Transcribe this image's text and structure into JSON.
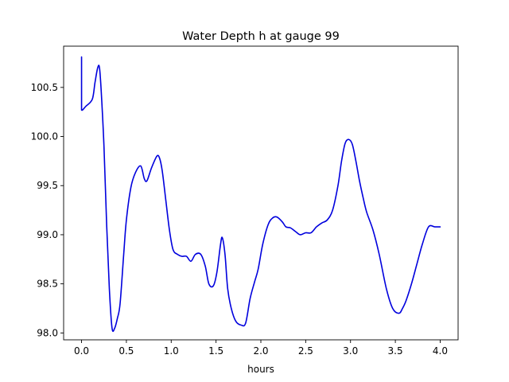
{
  "chart_data": {
    "type": "line",
    "title": "Water Depth h at gauge 99",
    "xlabel": "hours",
    "ylabel": "",
    "xlim": [
      -0.2,
      4.2
    ],
    "ylim": [
      97.93,
      100.92
    ],
    "xticks": [
      {
        "value": 0.0,
        "label": "0.0"
      },
      {
        "value": 0.5,
        "label": "0.5"
      },
      {
        "value": 1.0,
        "label": "1.0"
      },
      {
        "value": 1.5,
        "label": "1.5"
      },
      {
        "value": 2.0,
        "label": "2.0"
      },
      {
        "value": 2.5,
        "label": "2.5"
      },
      {
        "value": 3.0,
        "label": "3.0"
      },
      {
        "value": 3.5,
        "label": "3.5"
      },
      {
        "value": 4.0,
        "label": "4.0"
      }
    ],
    "yticks": [
      {
        "value": 98.0,
        "label": "98.0"
      },
      {
        "value": 98.5,
        "label": "98.5"
      },
      {
        "value": 99.0,
        "label": "99.0"
      },
      {
        "value": 99.5,
        "label": "99.5"
      },
      {
        "value": 100.0,
        "label": "100.0"
      },
      {
        "value": 100.5,
        "label": "100.5"
      }
    ],
    "grid": false,
    "series": [
      {
        "color": "#0000dd",
        "x": [
          0.0,
          0.0,
          0.0,
          0.05,
          0.12,
          0.15,
          0.18,
          0.2,
          0.22,
          0.25,
          0.28,
          0.31,
          0.34,
          0.37,
          0.4,
          0.43,
          0.47,
          0.5,
          0.55,
          0.6,
          0.66,
          0.7,
          0.73,
          0.78,
          0.84,
          0.87,
          0.9,
          0.94,
          0.98,
          1.02,
          1.07,
          1.12,
          1.17,
          1.22,
          1.27,
          1.33,
          1.38,
          1.42,
          1.47,
          1.51,
          1.55,
          1.57,
          1.6,
          1.63,
          1.67,
          1.72,
          1.78,
          1.83,
          1.88,
          1.93,
          1.97,
          2.02,
          2.08,
          2.13,
          2.18,
          2.24,
          2.28,
          2.33,
          2.39,
          2.44,
          2.5,
          2.56,
          2.62,
          2.68,
          2.74,
          2.8,
          2.86,
          2.9,
          2.94,
          2.98,
          3.02,
          3.06,
          3.1,
          3.14,
          3.18,
          3.25,
          3.32,
          3.4,
          3.47,
          3.54,
          3.58,
          3.62,
          3.68,
          3.74,
          3.8,
          3.87,
          3.94,
          4.0
        ],
        "y": [
          100.81,
          100.38,
          100.27,
          100.31,
          100.38,
          100.55,
          100.7,
          100.7,
          100.45,
          99.9,
          99.1,
          98.45,
          98.05,
          98.05,
          98.15,
          98.3,
          98.8,
          99.15,
          99.48,
          99.63,
          99.7,
          99.57,
          99.55,
          99.68,
          99.8,
          99.78,
          99.65,
          99.35,
          99.05,
          98.85,
          98.8,
          98.78,
          98.78,
          98.73,
          98.8,
          98.8,
          98.68,
          98.5,
          98.48,
          98.62,
          98.9,
          98.97,
          98.8,
          98.45,
          98.25,
          98.12,
          98.08,
          98.1,
          98.35,
          98.52,
          98.65,
          98.9,
          99.1,
          99.17,
          99.18,
          99.13,
          99.08,
          99.07,
          99.03,
          99.0,
          99.02,
          99.02,
          99.08,
          99.12,
          99.15,
          99.25,
          99.5,
          99.75,
          99.93,
          99.97,
          99.92,
          99.75,
          99.55,
          99.38,
          99.23,
          99.05,
          98.8,
          98.45,
          98.25,
          98.2,
          98.25,
          98.33,
          98.5,
          98.7,
          98.9,
          99.08,
          99.08,
          99.08
        ]
      }
    ]
  }
}
